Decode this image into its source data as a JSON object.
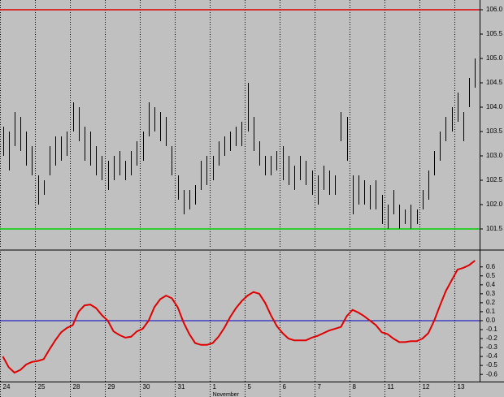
{
  "chart_data": [
    {
      "type": "ohlc",
      "high": [
        103.6,
        103.5,
        103.9,
        103.8,
        103.5,
        103.2,
        102.6,
        102.5,
        103.2,
        103.4,
        103.4,
        103.5,
        104.1,
        104.0,
        103.6,
        103.5,
        103.2,
        103.0,
        102.9,
        103.0,
        103.1,
        102.9,
        103.1,
        103.3,
        103.5,
        104.1,
        104.0,
        103.9,
        103.8,
        103.2,
        102.6,
        102.3,
        102.3,
        102.4,
        102.9,
        103.0,
        103.0,
        103.3,
        103.4,
        103.5,
        103.6,
        103.7,
        104.5,
        103.8,
        103.3,
        103.0,
        103.0,
        103.1,
        103.2,
        103.0,
        102.8,
        103.0,
        102.9,
        102.7,
        102.6,
        102.8,
        102.7,
        102.6,
        103.9,
        103.8,
        102.6,
        102.6,
        102.5,
        102.4,
        102.5,
        102.2,
        102.0,
        102.3,
        102.0,
        101.9,
        102.0,
        101.9,
        102.3,
        102.7,
        103.1,
        103.5,
        103.8,
        104.0,
        104.3,
        103.9,
        104.6,
        105.0
      ],
      "low": [
        103.0,
        102.7,
        103.2,
        103.1,
        102.8,
        102.6,
        102.0,
        102.2,
        102.6,
        102.8,
        102.9,
        103.0,
        103.5,
        103.3,
        102.9,
        102.8,
        102.6,
        102.5,
        102.3,
        102.5,
        102.6,
        102.5,
        102.6,
        102.8,
        102.9,
        103.4,
        103.5,
        103.3,
        103.2,
        102.6,
        102.1,
        101.8,
        101.9,
        102.0,
        102.3,
        102.4,
        102.5,
        102.8,
        103.0,
        103.1,
        103.2,
        103.2,
        103.5,
        103.1,
        102.8,
        102.6,
        102.6,
        102.7,
        102.5,
        102.4,
        102.3,
        102.5,
        102.4,
        102.2,
        102.0,
        102.3,
        102.2,
        102.2,
        103.3,
        102.9,
        101.8,
        102.0,
        102.0,
        101.9,
        101.9,
        101.6,
        101.5,
        101.8,
        101.5,
        101.6,
        101.5,
        101.6,
        101.9,
        102.1,
        102.6,
        102.9,
        103.3,
        103.5,
        103.7,
        103.3,
        104.0,
        104.4
      ],
      "ylim": [
        101.1,
        106.2
      ],
      "yticks": [
        {
          "value": 106,
          "label": "106.0"
        },
        105.5,
        {
          "value": 105,
          "label": "105.0"
        },
        104.5,
        {
          "value": 104,
          "label": "104.0"
        },
        103.5,
        {
          "value": 103,
          "label": "103.0"
        },
        102.5,
        {
          "value": 102,
          "label": "102.0"
        },
        101.5
      ],
      "hlines": [
        {
          "value": 106,
          "color": "#e00000"
        },
        {
          "value": 101.5,
          "color": "#00d000"
        }
      ],
      "color": "#000000"
    },
    {
      "type": "line",
      "values": [
        -0.4,
        -0.52,
        -0.58,
        -0.55,
        -0.49,
        -0.46,
        -0.45,
        -0.43,
        -0.32,
        -0.22,
        -0.13,
        -0.08,
        -0.05,
        0.1,
        0.17,
        0.18,
        0.14,
        0.06,
        0.0,
        -0.12,
        -0.16,
        -0.19,
        -0.18,
        -0.12,
        -0.09,
        0.0,
        0.15,
        0.24,
        0.28,
        0.25,
        0.15,
        -0.02,
        -0.15,
        -0.25,
        -0.27,
        -0.27,
        -0.25,
        -0.18,
        -0.08,
        0.04,
        0.14,
        0.22,
        0.28,
        0.32,
        0.3,
        0.2,
        0.06,
        -0.06,
        -0.14,
        -0.2,
        -0.22,
        -0.22,
        -0.22,
        -0.19,
        -0.17,
        -0.14,
        -0.11,
        -0.09,
        -0.07,
        0.05,
        0.12,
        0.09,
        0.05,
        0.0,
        -0.05,
        -0.13,
        -0.15,
        -0.2,
        -0.24,
        -0.24,
        -0.23,
        -0.23,
        -0.2,
        -0.14,
        0.0,
        0.17,
        0.33,
        0.45,
        0.57,
        0.59,
        0.62,
        0.67
      ],
      "color": "#e00000",
      "ylim": [
        -0.68,
        0.77
      ],
      "yticks": [
        0.6,
        0.5,
        0.4,
        0.3,
        0.2,
        0.1,
        {
          "value": 0,
          "label": "0.0"
        },
        -0.1,
        -0.2,
        -0.3,
        -0.4,
        -0.5,
        -0.6
      ],
      "hlines": [
        {
          "value": 0,
          "color": "#0000c0"
        }
      ],
      "xticks": [
        {
          "value": 0,
          "label": "24"
        },
        {
          "value": 6,
          "label": "25"
        },
        {
          "value": 12,
          "label": "28"
        },
        {
          "value": 18,
          "label": "29"
        },
        {
          "value": 24,
          "label": "30"
        },
        {
          "value": 30,
          "label": "31"
        },
        {
          "value": 36,
          "label": "1"
        },
        {
          "value": 42,
          "label": "5"
        },
        {
          "value": 48,
          "label": "6"
        },
        {
          "value": 54,
          "label": "7"
        },
        {
          "value": 60,
          "label": "8"
        },
        {
          "value": 66,
          "label": "11"
        },
        {
          "value": 72,
          "label": "12"
        },
        {
          "value": 78,
          "label": "13"
        }
      ],
      "x_annotation": {
        "value": 36,
        "label": "November"
      }
    }
  ]
}
